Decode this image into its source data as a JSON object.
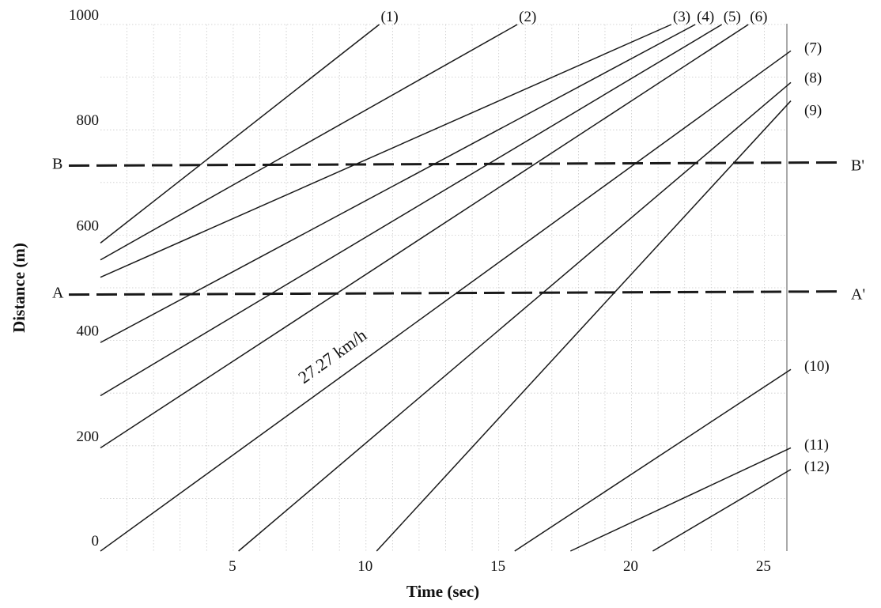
{
  "chart_data": {
    "type": "line",
    "title": "",
    "xlabel": "Time (sec)",
    "ylabel": "Distance (m)",
    "xlim": [
      0,
      26
    ],
    "ylim": [
      0,
      1000
    ],
    "x_ticks": [
      5,
      10,
      15,
      20,
      25
    ],
    "y_ticks": [
      0,
      200,
      400,
      600,
      800,
      1000
    ],
    "grid": true,
    "series": [
      {
        "name": "(1)",
        "x": [
          0,
          10.5
        ],
        "y": [
          585,
          1000
        ]
      },
      {
        "name": "(2)",
        "x": [
          0,
          15.7
        ],
        "y": [
          553,
          1000
        ]
      },
      {
        "name": "(3)",
        "x": [
          0,
          21.5
        ],
        "y": [
          520,
          1000
        ]
      },
      {
        "name": "(4)",
        "x": [
          0,
          22.4
        ],
        "y": [
          396,
          1000
        ]
      },
      {
        "name": "(5)",
        "x": [
          0,
          23.4
        ],
        "y": [
          295,
          1000
        ]
      },
      {
        "name": "(6)",
        "x": [
          0,
          24.4
        ],
        "y": [
          196,
          1000
        ]
      },
      {
        "name": "(7)",
        "x": [
          0,
          26
        ],
        "y": [
          0,
          950
        ]
      },
      {
        "name": "(8)",
        "x": [
          5.2,
          26
        ],
        "y": [
          0,
          890
        ]
      },
      {
        "name": "(9)",
        "x": [
          10.4,
          26
        ],
        "y": [
          0,
          855
        ]
      },
      {
        "name": "(10)",
        "x": [
          15.6,
          26
        ],
        "y": [
          0,
          345
        ]
      },
      {
        "name": "(11)",
        "x": [
          17.7,
          26
        ],
        "y": [
          0,
          196
        ]
      },
      {
        "name": "(12)",
        "x": [
          20.8,
          26
        ],
        "y": [
          0,
          155
        ]
      }
    ],
    "reference_lines": [
      {
        "name": "A",
        "end_label": "A'",
        "y": 490
      },
      {
        "name": "B",
        "end_label": "B'",
        "y": 735
      }
    ],
    "annotations": [
      {
        "text": "27.27 km/h",
        "series": "(7)"
      }
    ]
  }
}
